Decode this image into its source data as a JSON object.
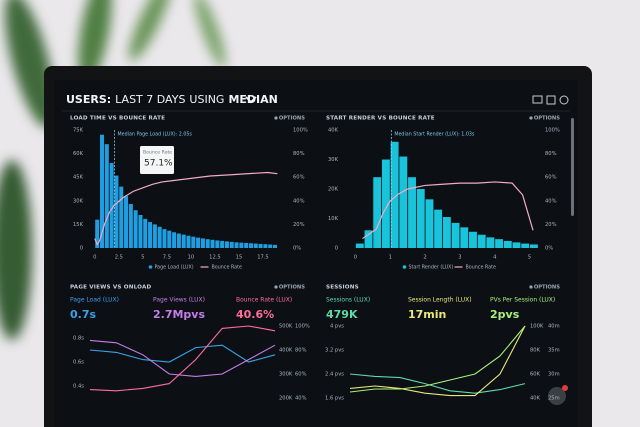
{
  "header": {
    "parts": [
      "USERS:",
      "LAST 7 DAYS",
      "USING",
      "MEDIAN"
    ]
  },
  "chart_data": [
    {
      "type": "histogram",
      "title": "LOAD TIME VS BOUNCE RATE",
      "options_label": "OPTIONS",
      "annotation": "Median Page Load (LUX): 2.05s",
      "median": 2.05,
      "tooltip": {
        "title": "Bounce Rate",
        "text": "57.1%"
      },
      "bins": [
        0,
        0.5,
        1,
        1.5,
        2,
        2.5,
        3,
        3.5,
        4,
        4.5,
        5,
        5.5,
        6,
        6.5,
        7,
        7.5,
        8,
        8.5,
        9,
        9.5,
        10,
        10.5,
        11,
        11.5,
        12,
        12.5,
        13,
        13.5,
        14,
        14.5,
        15,
        15.5,
        16,
        16.5,
        17,
        17.5,
        18,
        18.5,
        19
      ],
      "series": [
        {
          "name": "Page Load (LUX)",
          "color": "#1f9fe2",
          "values": [
            18000,
            72000,
            66000,
            54000,
            46000,
            39000,
            33000,
            28000,
            24000,
            21000,
            18500,
            16500,
            15000,
            13500,
            12000,
            11000,
            10000,
            9200,
            8500,
            7800,
            7200,
            6600,
            6100,
            5600,
            5200,
            4800,
            4500,
            4200,
            3900,
            3600,
            3400,
            3200,
            3000,
            2800,
            2600,
            2400,
            2200,
            2000
          ]
        },
        {
          "name": "Bounce Rate",
          "color": "#f3aac8",
          "axis": "y2",
          "x": [
            0,
            0.25,
            0.5,
            1,
            1.5,
            2,
            3,
            4,
            5,
            6,
            7,
            8,
            10,
            12,
            14,
            16,
            18,
            19
          ],
          "values": [
            8,
            3,
            6,
            20,
            30,
            36,
            43,
            48,
            51,
            54,
            56,
            57,
            59,
            61,
            62,
            63,
            64,
            63
          ]
        }
      ],
      "xlim": [
        -0.5,
        20
      ],
      "xticks": [
        0,
        2.5,
        5,
        7.5,
        10,
        12.5,
        15,
        17.5
      ],
      "ylim": [
        0,
        75000
      ],
      "yticks": [
        0,
        {
          "value": 15000,
          "label": "15K"
        },
        {
          "value": 30000,
          "label": "30K"
        },
        {
          "value": 45000,
          "label": "45K"
        },
        {
          "value": 60000,
          "label": "60K"
        },
        {
          "value": 75000,
          "label": "75K"
        }
      ],
      "y2lim": [
        0,
        100
      ],
      "y2ticks": [
        {
          "value": 0,
          "label": "0%"
        },
        {
          "value": 20,
          "label": "20%"
        },
        {
          "value": 40,
          "label": "40%"
        },
        {
          "value": 60,
          "label": "60%"
        },
        {
          "value": 80,
          "label": "80%"
        },
        {
          "value": 100,
          "label": "100%"
        }
      ]
    },
    {
      "type": "histogram",
      "title": "START RENDER VS BOUNCE RATE",
      "options_label": "OPTIONS",
      "annotation": "Median Start Render (LUX): 1.03s",
      "median": 1.03,
      "bins": [
        0,
        0.25,
        0.5,
        0.75,
        1,
        1.25,
        1.5,
        1.75,
        2,
        2.25,
        2.5,
        2.75,
        3,
        3.25,
        3.5,
        3.75,
        4,
        4.25,
        4.5,
        4.75,
        5,
        5.25
      ],
      "series": [
        {
          "name": "Start Render (LUX)",
          "color": "#19c3d9",
          "values": [
            1500,
            6000,
            24000,
            30000,
            36000,
            31000,
            24000,
            20000,
            16500,
            13000,
            10500,
            8500,
            7000,
            5500,
            4500,
            3600,
            3000,
            2400,
            1900,
            1500,
            1200
          ]
        },
        {
          "name": "Bounce Rate",
          "color": "#f3aac8",
          "axis": "y2",
          "x": [
            0.2,
            0.4,
            0.6,
            0.8,
            1,
            1.25,
            1.5,
            2,
            2.5,
            3,
            3.5,
            4,
            4.5,
            4.8,
            5.1
          ],
          "values": [
            8,
            12,
            16,
            30,
            40,
            46,
            50,
            53,
            54,
            55,
            55,
            56,
            55,
            45,
            15
          ]
        }
      ],
      "xlim": [
        -0.3,
        5.3
      ],
      "xticks": [
        0,
        1,
        2,
        3,
        4,
        5
      ],
      "ylim": [
        0,
        40000
      ],
      "yticks": [
        0,
        {
          "value": 10000,
          "label": "10K"
        },
        {
          "value": 20000,
          "label": "20K"
        },
        {
          "value": 30000,
          "label": "30K"
        },
        {
          "value": 40000,
          "label": "40K"
        }
      ],
      "y2lim": [
        0,
        100
      ],
      "y2ticks": [
        {
          "value": 0,
          "label": "0%"
        },
        {
          "value": 20,
          "label": "20%"
        },
        {
          "value": 40,
          "label": "40%"
        },
        {
          "value": 60,
          "label": "60%"
        },
        {
          "value": 80,
          "label": "80%"
        },
        {
          "value": 100,
          "label": "100%"
        }
      ]
    },
    {
      "type": "line",
      "title": "PAGE VIEWS VS ONLOAD",
      "options_label": "OPTIONS",
      "series": [
        {
          "name": "Page Load (LUX)",
          "summary": "0.7s",
          "color": "#3aa2ea",
          "values": [
            0.7,
            0.68,
            0.62,
            0.6,
            0.72,
            0.74,
            0.6,
            0.66
          ]
        },
        {
          "name": "Page Views (LUX)",
          "summary": "2.7Mpvs",
          "color": "#c57de9",
          "axis": "y2",
          "values": [
            440000,
            430000,
            380000,
            300000,
            290000,
            300000,
            360000,
            420000
          ]
        },
        {
          "name": "Bounce Rate (LUX)",
          "summary": "40.6%",
          "color": "#ff6d9c",
          "axis": "y3",
          "values": [
            47,
            46,
            48,
            52,
            72,
            98,
            100,
            96
          ]
        }
      ],
      "ylim": [
        0.3,
        0.9
      ],
      "yticks": [
        {
          "value": 0.8,
          "label": "0.8s"
        },
        {
          "value": 0.6,
          "label": "0.6s"
        },
        {
          "value": 0.4,
          "label": "0.4s"
        }
      ],
      "y2lim": [
        200000,
        500000
      ],
      "y2ticks": [
        {
          "value": 500000,
          "label": "500K"
        },
        {
          "value": 400000,
          "label": "400K"
        },
        {
          "value": 300000,
          "label": "300K"
        },
        {
          "value": 200000,
          "label": "200K"
        }
      ],
      "y3lim": [
        40,
        100
      ],
      "y3ticks": [
        {
          "value": 100,
          "label": "100%"
        },
        {
          "value": 80,
          "label": "80%"
        },
        {
          "value": 60,
          "label": "60%"
        },
        {
          "value": 40,
          "label": "40%"
        }
      ]
    },
    {
      "type": "line",
      "title": "SESSIONS",
      "options_label": "OPTIONS",
      "series": [
        {
          "name": "Sessions (LUX)",
          "summary": "479K",
          "color": "#5fd9a8",
          "axis": "y2",
          "values": [
            60000,
            58000,
            57000,
            52000,
            46000,
            44000,
            47000,
            52000
          ]
        },
        {
          "name": "Session Length (LUX)",
          "summary": "17min",
          "color": "#e8e878",
          "axis": "y3",
          "values": [
            27,
            27.5,
            27,
            26,
            25.5,
            25.5,
            30,
            40
          ]
        },
        {
          "name": "PVs Per Session (LUX)",
          "summary": "2pvs",
          "color": "#a6f27a",
          "values": [
            1.8,
            1.9,
            1.9,
            2.0,
            2.2,
            2.4,
            3.0,
            4.0
          ]
        }
      ],
      "ylim": [
        1.6,
        4
      ],
      "yticks": [
        {
          "value": 4,
          "label": "4 pvs"
        },
        {
          "value": 3.2,
          "label": "3.2 pvs"
        },
        {
          "value": 2.4,
          "label": "2.4 pvs"
        },
        {
          "value": 1.6,
          "label": "1.6 pvs"
        }
      ],
      "y2lim": [
        40000,
        100000
      ],
      "y2ticks": [
        {
          "value": 100000,
          "label": "100K"
        },
        {
          "value": 80000,
          "label": "80K"
        },
        {
          "value": 60000,
          "label": "60K"
        },
        {
          "value": 40000,
          "label": "40K"
        }
      ],
      "y3lim": [
        25,
        40
      ],
      "y3ticks": [
        {
          "value": 40,
          "label": "40m"
        },
        {
          "value": 35,
          "label": "35m"
        },
        {
          "value": 30,
          "label": "30m"
        },
        {
          "value": 25,
          "label": "25m"
        }
      ]
    }
  ]
}
